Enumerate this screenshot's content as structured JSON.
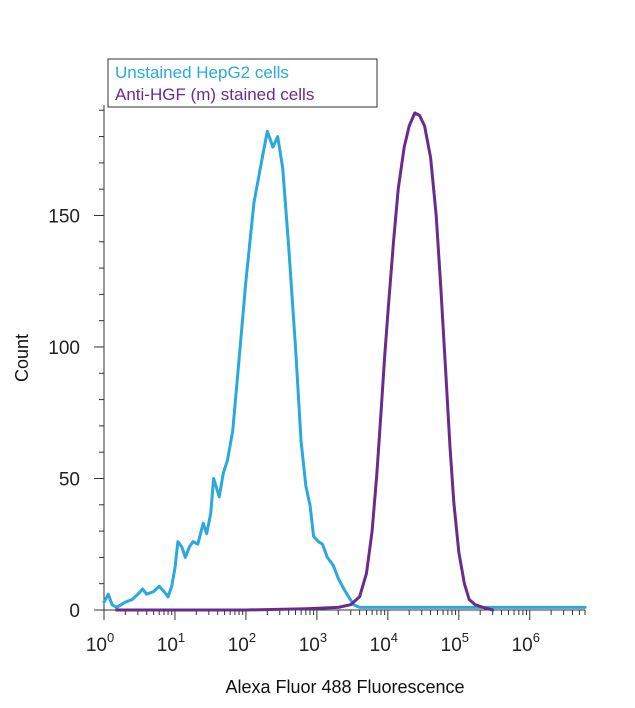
{
  "chart_data": {
    "type": "line",
    "title": "",
    "xlabel": "Alexa Fluor 488 Fluorescence",
    "ylabel": "Count",
    "x_scale": "log",
    "xlim": [
      1,
      6000000
    ],
    "ylim": [
      0,
      192
    ],
    "x_ticks": [
      {
        "value": 1,
        "base": "10",
        "exp": "0"
      },
      {
        "value": 10,
        "base": "10",
        "exp": "1"
      },
      {
        "value": 100,
        "base": "10",
        "exp": "2"
      },
      {
        "value": 1000,
        "base": "10",
        "exp": "3"
      },
      {
        "value": 10000,
        "base": "10",
        "exp": "4"
      },
      {
        "value": 100000,
        "base": "10",
        "exp": "5"
      },
      {
        "value": 1000000,
        "base": "10",
        "exp": "6"
      }
    ],
    "y_ticks": [
      0,
      50,
      100,
      150
    ],
    "grid": false,
    "legend_position": "top-left",
    "series": [
      {
        "name": "Unstained HepG2 cells",
        "color": "#29a9dc",
        "points": [
          [
            1.0,
            3
          ],
          [
            1.15,
            6
          ],
          [
            1.3,
            2
          ],
          [
            1.5,
            1
          ],
          [
            2.0,
            3
          ],
          [
            2.5,
            4
          ],
          [
            3.0,
            6
          ],
          [
            3.5,
            8
          ],
          [
            4.0,
            6
          ],
          [
            5.0,
            7
          ],
          [
            6.0,
            9
          ],
          [
            7.0,
            7
          ],
          [
            8.0,
            5
          ],
          [
            9.0,
            9
          ],
          [
            10.0,
            16
          ],
          [
            11.0,
            26
          ],
          [
            12.5,
            24
          ],
          [
            14.0,
            20
          ],
          [
            16.0,
            24
          ],
          [
            18.0,
            26
          ],
          [
            21.0,
            25
          ],
          [
            25.0,
            33
          ],
          [
            28.0,
            29
          ],
          [
            32.0,
            37
          ],
          [
            35.0,
            50
          ],
          [
            38.0,
            47
          ],
          [
            42.0,
            43
          ],
          [
            48.0,
            52
          ],
          [
            55.0,
            57
          ],
          [
            65.0,
            68
          ],
          [
            80.0,
            95
          ],
          [
            100.0,
            125
          ],
          [
            130.0,
            155
          ],
          [
            170.0,
            172
          ],
          [
            200.0,
            182
          ],
          [
            240.0,
            176
          ],
          [
            280.0,
            180
          ],
          [
            330.0,
            168
          ],
          [
            400.0,
            138
          ],
          [
            500.0,
            100
          ],
          [
            600.0,
            64
          ],
          [
            700.0,
            47
          ],
          [
            800.0,
            40
          ],
          [
            900.0,
            28
          ],
          [
            1050.0,
            26
          ],
          [
            1200.0,
            25
          ],
          [
            1400.0,
            20
          ],
          [
            1700.0,
            17
          ],
          [
            2000.0,
            12
          ],
          [
            2400.0,
            8
          ],
          [
            2800.0,
            5
          ],
          [
            3300.0,
            2
          ],
          [
            4000.0,
            1
          ],
          [
            10000.0,
            1
          ],
          [
            100000.0,
            1
          ],
          [
            1000000.0,
            1
          ],
          [
            6000000.0,
            1
          ]
        ]
      },
      {
        "name": "Anti-HGF (m) stained cells",
        "color": "#6b2b8c",
        "points": [
          [
            1.5,
            0
          ],
          [
            100.0,
            0
          ],
          [
            700.0,
            0.5
          ],
          [
            2000.0,
            1
          ],
          [
            3000.0,
            2
          ],
          [
            4000.0,
            5
          ],
          [
            5000.0,
            14
          ],
          [
            6000.0,
            30
          ],
          [
            7000.0,
            52
          ],
          [
            8000.0,
            75
          ],
          [
            9000.0,
            96
          ],
          [
            10000.0,
            113
          ],
          [
            12000.0,
            140
          ],
          [
            14000.0,
            160
          ],
          [
            17000.0,
            176
          ],
          [
            20000.0,
            184
          ],
          [
            24000.0,
            189
          ],
          [
            28000.0,
            188
          ],
          [
            33000.0,
            184
          ],
          [
            40000.0,
            172
          ],
          [
            48000.0,
            150
          ],
          [
            56000.0,
            122
          ],
          [
            65000.0,
            92
          ],
          [
            75000.0,
            62
          ],
          [
            85000.0,
            41
          ],
          [
            100000.0,
            22
          ],
          [
            120000.0,
            10
          ],
          [
            140000.0,
            4
          ],
          [
            170000.0,
            2
          ],
          [
            220000.0,
            1
          ],
          [
            300000.0,
            0
          ]
        ]
      }
    ]
  }
}
